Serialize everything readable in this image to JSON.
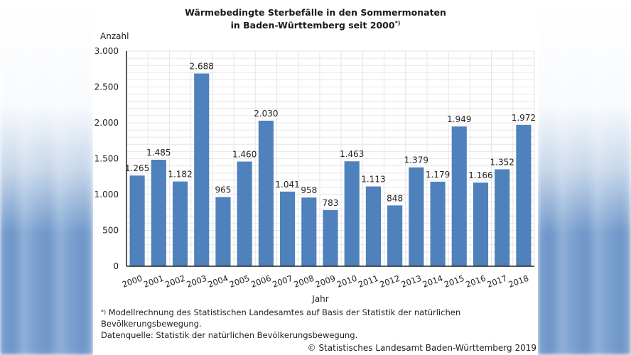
{
  "chart_data": {
    "type": "bar",
    "title_line1": "Wärmebedingte Sterbefälle in den Sommermonaten",
    "title_line2": "in Baden-Württemberg seit 2000",
    "title_footnote_mark": "*)",
    "xlabel": "Jahr",
    "ylabel": "Anzahl",
    "ylim": [
      0,
      3000
    ],
    "yticks": [
      0,
      500,
      1000,
      1500,
      2000,
      2500,
      3000
    ],
    "ytick_labels": [
      "0",
      "500",
      "1.000",
      "1.500",
      "2.000",
      "2.500",
      "3.000"
    ],
    "minor_grid_step": 100,
    "grid": true,
    "bar_color": "#4f81bd",
    "categories": [
      "2000",
      "2001",
      "2002",
      "2003",
      "2004",
      "2005",
      "2006",
      "2007",
      "2008",
      "2009",
      "2010",
      "2011",
      "2012",
      "2013",
      "2014",
      "2015",
      "2016",
      "2017",
      "2018"
    ],
    "values": [
      1265,
      1485,
      1182,
      2688,
      965,
      1460,
      2030,
      1041,
      958,
      783,
      1463,
      1113,
      848,
      1379,
      1179,
      1949,
      1166,
      1352,
      1972
    ],
    "value_labels": [
      "1.265",
      "1.485",
      "1.182",
      "2.688",
      "965",
      "1.460",
      "2.030",
      "1.041",
      "958",
      "783",
      "1.463",
      "1.113",
      "848",
      "1.379",
      "1.179",
      "1.949",
      "1.166",
      "1.352",
      "1.972"
    ]
  },
  "footnotes": {
    "note_mark": "*)",
    "note_text": "Modellrechnung des Statistischen Landesamtes auf Basis der Statistik der natürlichen Bevölkerungsbewegung.",
    "source": "Datenquelle: Statistik der natürlichen Bevölkerungsbewegung.",
    "copyright": "© Statistisches Landesamt Baden-Württemberg 2019"
  }
}
